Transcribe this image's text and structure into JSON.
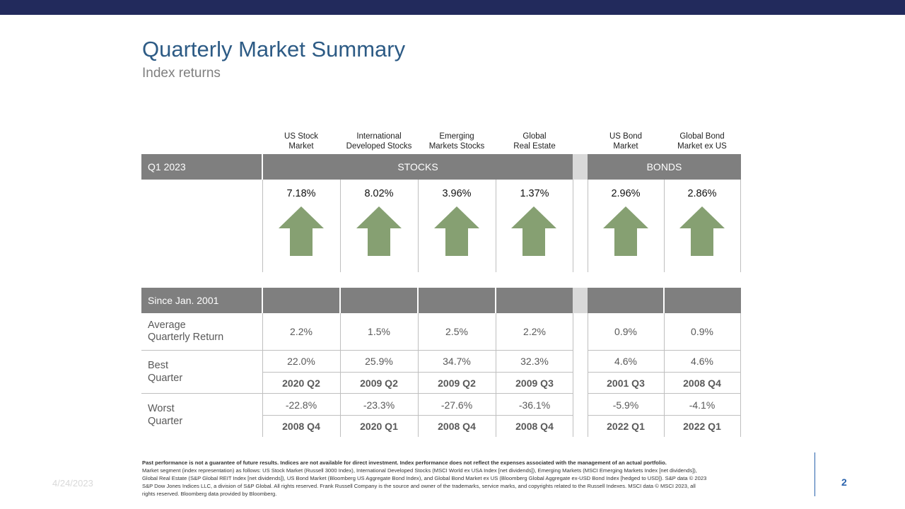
{
  "title": "Quarterly Market Summary",
  "subtitle": "Index returns",
  "colors": {
    "top_bar": "#222a5c",
    "title": "#2d5b85",
    "header_bar": "#7f7f7f",
    "arrow": "#86a072",
    "page_number": "#2a63ad"
  },
  "columns": [
    {
      "line1": "US Stock",
      "line2": "Market"
    },
    {
      "line1": "International",
      "line2": "Developed Stocks"
    },
    {
      "line1": "Emerging",
      "line2": "Markets Stocks"
    },
    {
      "line1": "Global",
      "line2": "Real Estate"
    },
    {
      "line1": "US Bond",
      "line2": "Market"
    },
    {
      "line1": "Global Bond",
      "line2": "Market ex US"
    }
  ],
  "quarter_bar": {
    "label": "Q1 2023",
    "stocks": "STOCKS",
    "bonds": "BONDS"
  },
  "quarter_returns": [
    "7.18%",
    "8.02%",
    "3.96%",
    "1.37%",
    "2.96%",
    "2.86%"
  ],
  "arrow_icon": "up-arrow-icon",
  "since_bar": {
    "label": "Since Jan. 2001"
  },
  "average": {
    "label_line1": "Average",
    "label_line2": "Quarterly Return",
    "values": [
      "2.2%",
      "1.5%",
      "2.5%",
      "2.2%",
      "0.9%",
      "0.9%"
    ]
  },
  "best": {
    "label_line1": "Best",
    "label_line2": "Quarter",
    "values": [
      "22.0%",
      "25.9%",
      "34.7%",
      "32.3%",
      "4.6%",
      "4.6%"
    ],
    "quarters": [
      "2020 Q2",
      "2009 Q2",
      "2009 Q2",
      "2009 Q3",
      "2001 Q3",
      "2008 Q4"
    ]
  },
  "worst": {
    "label_line1": "Worst",
    "label_line2": "Quarter",
    "values": [
      "-22.8%",
      "-23.3%",
      "-27.6%",
      "-36.1%",
      "-5.9%",
      "-4.1%"
    ],
    "quarters": [
      "2008 Q4",
      "2020 Q1",
      "2008 Q4",
      "2008 Q4",
      "2022 Q1",
      "2022 Q1"
    ]
  },
  "footnote": {
    "bold": "Past performance is not a guarantee of future results. Indices are not available for direct investment. Index performance does not reflect the expenses associated with the management of an actual portfolio.",
    "body": "Market segment (index representation) as follows: US Stock Market (Russell 3000 Index), International Developed Stocks (MSCI World ex USA Index [net dividends]), Emerging Markets (MSCI Emerging Markets Index [net dividends]), Global Real Estate (S&P Global REIT Index [net dividends]), US Bond Market (Bloomberg US Aggregate Bond Index), and Global Bond Market ex US (Bloomberg Global Aggregate ex-USD Bond Index [hedged to USD]). S&P data © 2023 S&P Dow Jones Indices LLC, a division of S&P Global. All rights reserved. Frank Russell Company is the source and owner of the trademarks, service marks, and copyrights related to the Russell Indexes. MSCI data © MSCI 2023, all rights reserved. Bloomberg data provided by Bloomberg."
  },
  "date": "4/24/2023",
  "page_number": "2"
}
